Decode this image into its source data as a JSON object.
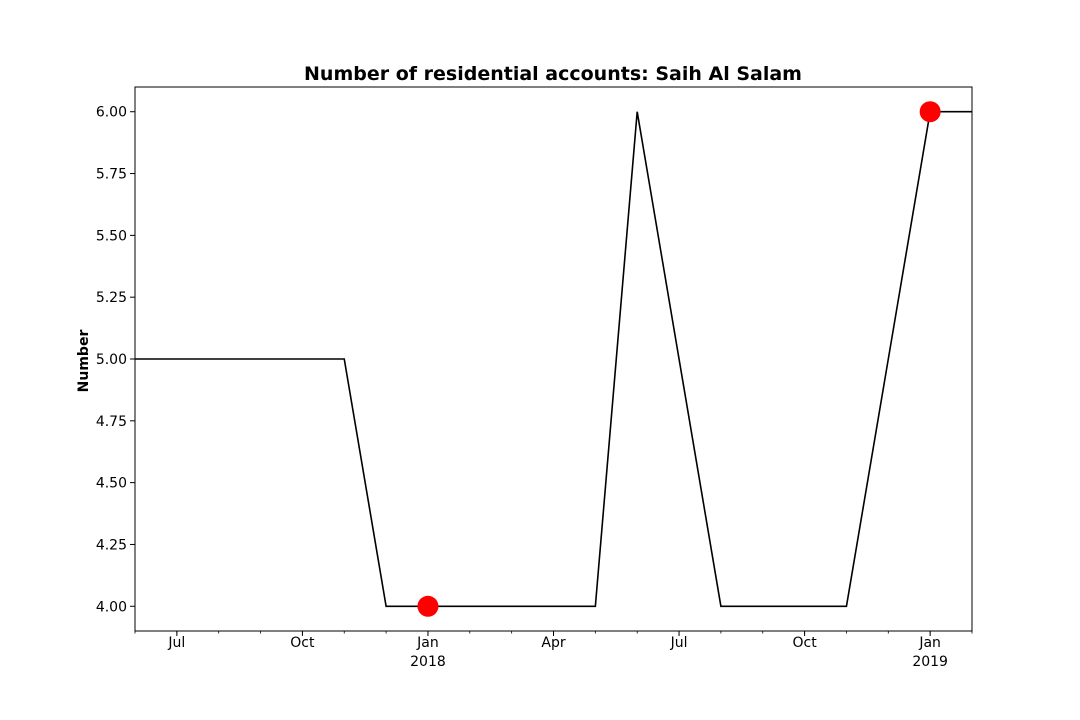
{
  "chart_data": {
    "type": "line",
    "title": "Number of residential accounts: Saih Al Salam",
    "xlabel": "",
    "ylabel": "Number",
    "x": [
      "2017-05",
      "2017-06",
      "2017-07",
      "2017-08",
      "2017-09",
      "2017-10",
      "2017-11",
      "2017-12",
      "2018-01",
      "2018-02",
      "2018-03",
      "2018-04",
      "2018-05",
      "2018-06",
      "2018-07",
      "2018-08",
      "2018-09",
      "2018-10",
      "2018-11",
      "2018-12",
      "2019-01",
      "2019-02"
    ],
    "series": [
      {
        "color": "#000000",
        "values": [
          5,
          5,
          5,
          5,
          5,
          5,
          5,
          4,
          4,
          4,
          4,
          4,
          4,
          6,
          5,
          4,
          4,
          4,
          4,
          5,
          6,
          6
        ]
      }
    ],
    "markers": [
      {
        "x": "2018-01",
        "y": 4,
        "color": "#ff0000"
      },
      {
        "x": "2019-01",
        "y": 6,
        "color": "#ff0000"
      }
    ],
    "xlim": [
      "2017-06",
      "2019-02"
    ],
    "ylim": [
      3.9,
      6.1
    ],
    "yticks": [
      "4.00",
      "4.25",
      "4.50",
      "4.75",
      "5.00",
      "5.25",
      "5.50",
      "5.75",
      "6.00"
    ],
    "xticks": [
      {
        "date": "2017-07",
        "label": "Jul",
        "sublabel": ""
      },
      {
        "date": "2017-10",
        "label": "Oct",
        "sublabel": ""
      },
      {
        "date": "2018-01",
        "label": "Jan",
        "sublabel": "2018"
      },
      {
        "date": "2018-04",
        "label": "Apr",
        "sublabel": ""
      },
      {
        "date": "2018-07",
        "label": "Jul",
        "sublabel": ""
      },
      {
        "date": "2018-10",
        "label": "Oct",
        "sublabel": ""
      },
      {
        "date": "2019-01",
        "label": "Jan",
        "sublabel": "2019"
      }
    ],
    "grid": false,
    "legend": "none"
  }
}
